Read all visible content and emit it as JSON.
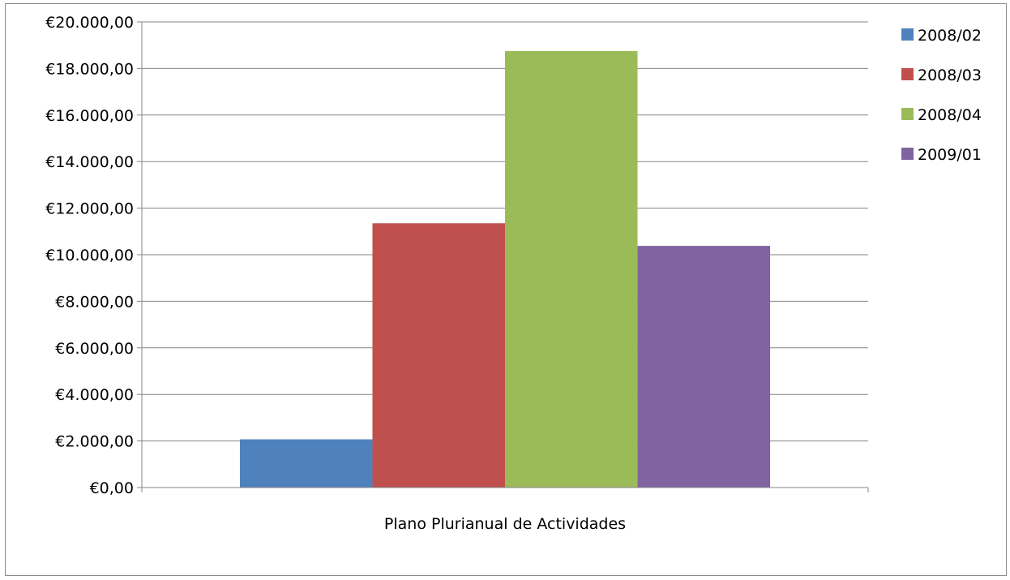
{
  "chart_data": {
    "type": "bar",
    "categories": [
      "Plano Plurianual de Actividades"
    ],
    "series": [
      {
        "name": "2008/02",
        "values": [
          2070
        ],
        "color": "#4f81bd"
      },
      {
        "name": "2008/03",
        "values": [
          11350
        ],
        "color": "#c0504d"
      },
      {
        "name": "2008/04",
        "values": [
          18750
        ],
        "color": "#9bbb59"
      },
      {
        "name": "2009/01",
        "values": [
          10380
        ],
        "color": "#8064a2"
      }
    ],
    "y_ticks": [
      "€0,00",
      "€2.000,00",
      "€4.000,00",
      "€6.000,00",
      "€8.000,00",
      "€10.000,00",
      "€12.000,00",
      "€14.000,00",
      "€16.000,00",
      "€18.000,00",
      "€20.000,00"
    ],
    "ylim": [
      0,
      20000
    ],
    "title": "",
    "xlabel": "",
    "ylabel": "",
    "grid": true,
    "legend_position": "right"
  }
}
